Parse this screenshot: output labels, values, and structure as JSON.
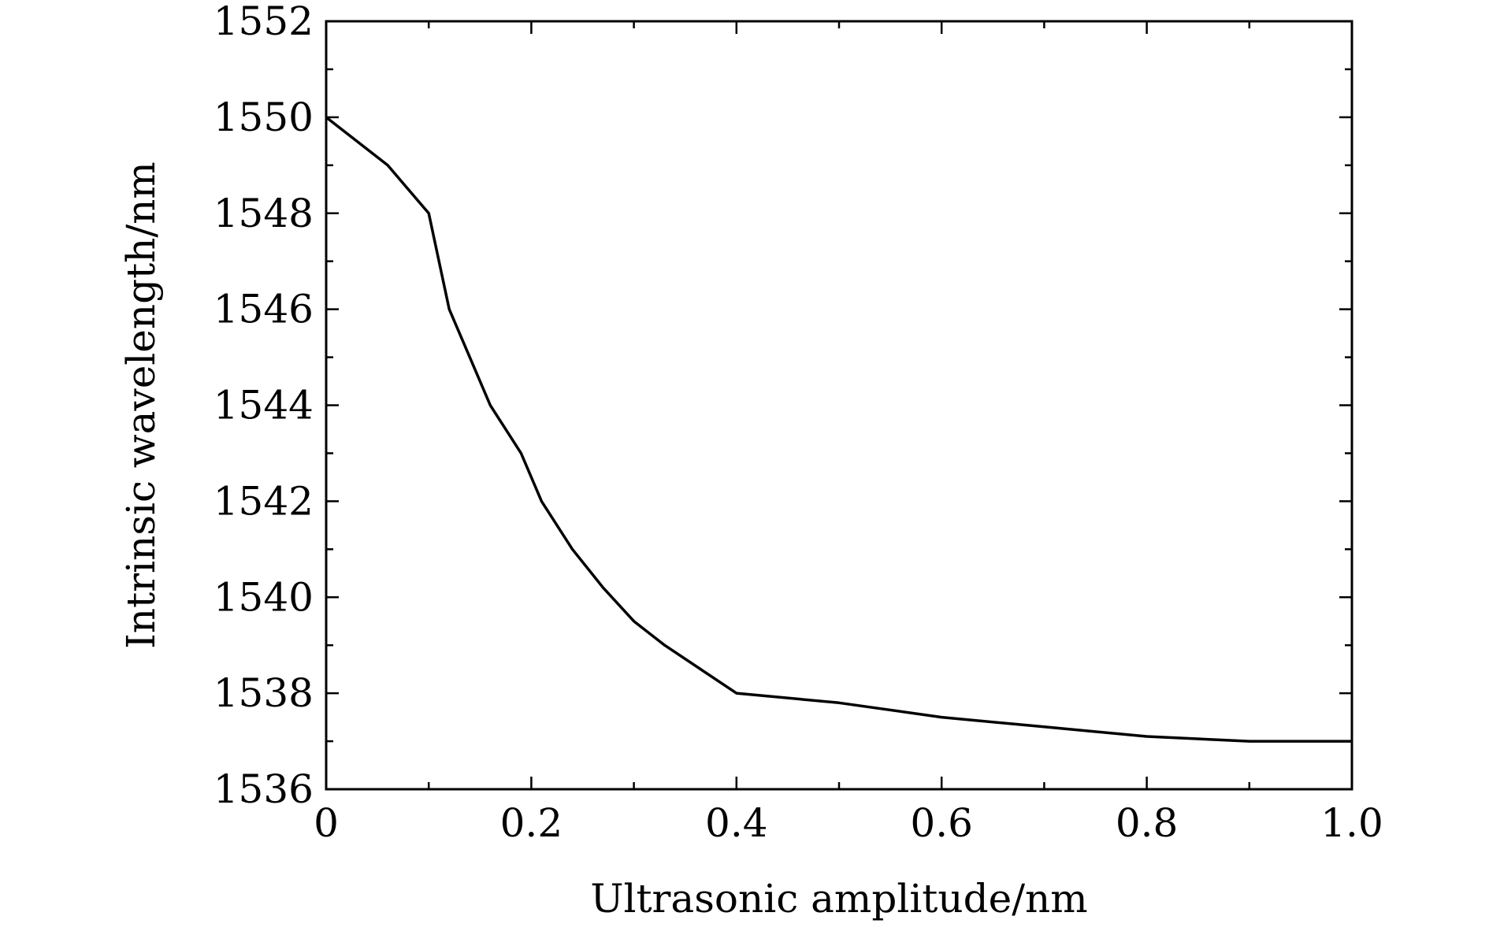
{
  "chart_data": {
    "type": "line",
    "title": "",
    "xlabel": "Ultrasonic amplitude/nm",
    "ylabel": "Intrinsic wavelength/nm",
    "xlim": [
      0,
      1.0
    ],
    "ylim": [
      1536,
      1552
    ],
    "x_ticks": [
      0,
      0.2,
      0.4,
      0.6,
      0.8,
      1.0
    ],
    "x_tick_labels": [
      "0",
      "0.2",
      "0.4",
      "0.6",
      "0.8",
      "1.0"
    ],
    "x_minor_step": 0.1,
    "y_ticks": [
      1536,
      1538,
      1540,
      1542,
      1544,
      1546,
      1548,
      1550,
      1552
    ],
    "y_tick_labels": [
      "1536",
      "1538",
      "1540",
      "1542",
      "1544",
      "1546",
      "1548",
      "1550",
      "1552"
    ],
    "y_minor_step": 1,
    "grid": false,
    "legend": "none",
    "line_color": "#000000",
    "series": [
      {
        "x": [
          0,
          0.06,
          0.1,
          0.12,
          0.14,
          0.16,
          0.19,
          0.21,
          0.24,
          0.27,
          0.3,
          0.33,
          0.4,
          0.5,
          0.6,
          0.7,
          0.8,
          0.9,
          1.0
        ],
        "y": [
          1550,
          1549,
          1548,
          1546,
          1545,
          1544,
          1543,
          1542,
          1541,
          1540.2,
          1539.5,
          1539,
          1538,
          1537.8,
          1537.5,
          1537.3,
          1537.1,
          1537,
          1537
        ]
      }
    ]
  }
}
